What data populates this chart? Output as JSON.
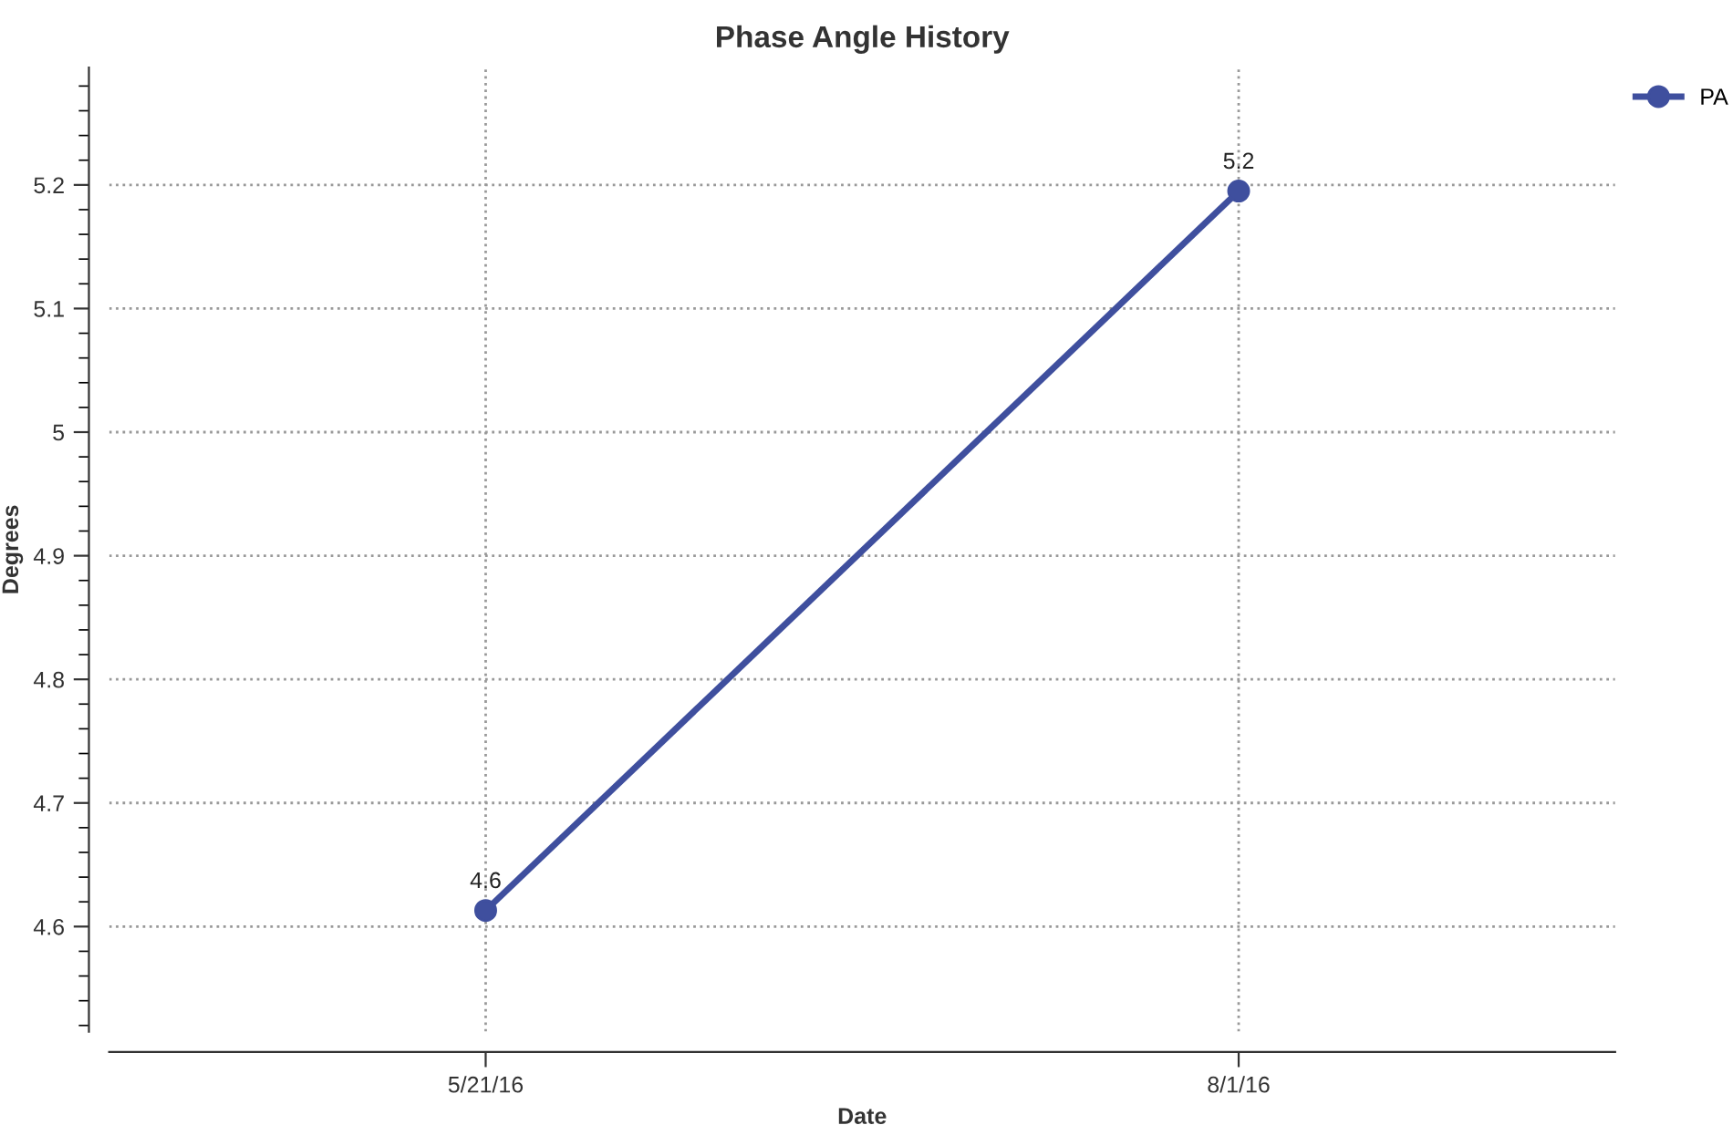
{
  "chart_data": {
    "type": "line",
    "title": "Phase Angle History",
    "xlabel": "Date",
    "ylabel": "Degrees",
    "x": [
      "2016-05-21",
      "2016-08-01"
    ],
    "series": [
      {
        "name": "PA",
        "color": "#3f4f9e",
        "values": [
          4.613,
          5.195
        ],
        "value_labels": [
          "4.6",
          "5.2"
        ]
      }
    ],
    "xlim": [
      "2016-04-15",
      "2016-09-06"
    ],
    "xticks": [
      {
        "value": "2016-05-21",
        "label": "5/21/16"
      },
      {
        "value": "2016-08-01",
        "label": "8/1/16"
      }
    ],
    "ylim": [
      4.515,
      5.295
    ],
    "yticks": [
      {
        "value": 4.52,
        "label": null
      },
      {
        "value": 4.54,
        "label": null
      },
      {
        "value": 4.56,
        "label": null
      },
      {
        "value": 4.58,
        "label": null
      },
      {
        "value": 4.6,
        "label": "4.6"
      },
      {
        "value": 4.62,
        "label": null
      },
      {
        "value": 4.64,
        "label": null
      },
      {
        "value": 4.66,
        "label": null
      },
      {
        "value": 4.68,
        "label": null
      },
      {
        "value": 4.7,
        "label": "4.7"
      },
      {
        "value": 4.72,
        "label": null
      },
      {
        "value": 4.74,
        "label": null
      },
      {
        "value": 4.76,
        "label": null
      },
      {
        "value": 4.78,
        "label": null
      },
      {
        "value": 4.8,
        "label": "4.8"
      },
      {
        "value": 4.82,
        "label": null
      },
      {
        "value": 4.84,
        "label": null
      },
      {
        "value": 4.86,
        "label": null
      },
      {
        "value": 4.88,
        "label": null
      },
      {
        "value": 4.9,
        "label": "4.9"
      },
      {
        "value": 4.92,
        "label": null
      },
      {
        "value": 4.94,
        "label": null
      },
      {
        "value": 4.96,
        "label": null
      },
      {
        "value": 4.98,
        "label": null
      },
      {
        "value": 5,
        "label": "5"
      },
      {
        "value": 5.02,
        "label": null
      },
      {
        "value": 5.04,
        "label": null
      },
      {
        "value": 5.06,
        "label": null
      },
      {
        "value": 5.08,
        "label": null
      },
      {
        "value": 5.1,
        "label": "5.1"
      },
      {
        "value": 5.12,
        "label": null
      },
      {
        "value": 5.14,
        "label": null
      },
      {
        "value": 5.16,
        "label": null
      },
      {
        "value": 5.18,
        "label": null
      },
      {
        "value": 5.2,
        "label": "5.2"
      },
      {
        "value": 5.22,
        "label": null
      },
      {
        "value": 5.24,
        "label": null
      },
      {
        "value": 5.26,
        "label": null
      },
      {
        "value": 5.28,
        "label": null
      }
    ],
    "grid": true,
    "legend": "top right",
    "marker": "circle",
    "line_style": "solid"
  }
}
